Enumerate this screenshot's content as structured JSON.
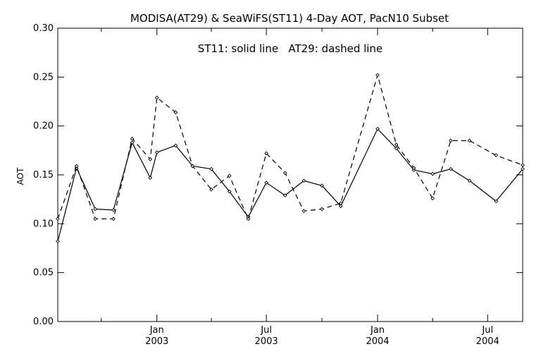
{
  "chart_data": {
    "type": "line",
    "title": "MODISA(AT29) & SeaWiFS(ST11) 4-Day AOT, PacN10 Subset",
    "annotation": "ST11: solid line   AT29: dashed line",
    "ylabel": "AOT",
    "xlabel": "",
    "ylim": [
      0.0,
      0.3
    ],
    "xlim": [
      "2002-07-21",
      "2004-08-28"
    ],
    "yticks": [
      "0.00",
      "0.05",
      "0.10",
      "0.15",
      "0.20",
      "0.25",
      "0.30"
    ],
    "xticks": [
      {
        "label": "Jan",
        "sublabel": "2003"
      },
      {
        "label": "Jul",
        "sublabel": "2003"
      },
      {
        "label": "Jan",
        "sublabel": "2004"
      },
      {
        "label": "Jul",
        "sublabel": "2004"
      }
    ],
    "series": [
      {
        "name": "ST11",
        "style": "solid",
        "color": "#000000",
        "points": [
          [
            "2002-07-21",
            0.082
          ],
          [
            "2002-08-21",
            0.157
          ],
          [
            "2002-09-21",
            0.115
          ],
          [
            "2002-10-21",
            0.114
          ],
          [
            "2002-11-21",
            0.183
          ],
          [
            "2002-12-21",
            0.147
          ],
          [
            "2003-01-01",
            0.173
          ],
          [
            "2003-02-01",
            0.18
          ],
          [
            "2003-03-01",
            0.159
          ],
          [
            "2003-04-01",
            0.156
          ],
          [
            "2003-05-01",
            0.133
          ],
          [
            "2003-06-01",
            0.107
          ],
          [
            "2003-07-01",
            0.142
          ],
          [
            "2003-08-01",
            0.129
          ],
          [
            "2003-09-01",
            0.144
          ],
          [
            "2003-10-01",
            0.139
          ],
          [
            "2003-11-01",
            0.118
          ],
          [
            "2004-01-01",
            0.197
          ],
          [
            "2004-02-01",
            0.177
          ],
          [
            "2004-03-01",
            0.155
          ],
          [
            "2004-04-01",
            0.151
          ],
          [
            "2004-05-01",
            0.156
          ],
          [
            "2004-06-01",
            0.144
          ],
          [
            "2004-07-15",
            0.123
          ],
          [
            "2004-08-28",
            0.156
          ]
        ]
      },
      {
        "name": "AT29",
        "style": "dashed",
        "color": "#000000",
        "points": [
          [
            "2002-07-21",
            0.105
          ],
          [
            "2002-08-21",
            0.159
          ],
          [
            "2002-09-21",
            0.105
          ],
          [
            "2002-10-21",
            0.105
          ],
          [
            "2002-11-21",
            0.187
          ],
          [
            "2002-12-21",
            0.166
          ],
          [
            "2003-01-01",
            0.229
          ],
          [
            "2003-02-01",
            0.214
          ],
          [
            "2003-03-01",
            0.159
          ],
          [
            "2003-04-01",
            0.135
          ],
          [
            "2003-05-01",
            0.149
          ],
          [
            "2003-06-01",
            0.105
          ],
          [
            "2003-07-01",
            0.172
          ],
          [
            "2003-08-01",
            0.152
          ],
          [
            "2003-09-01",
            0.113
          ],
          [
            "2003-10-01",
            0.115
          ],
          [
            "2003-11-01",
            0.121
          ],
          [
            "2004-01-01",
            0.252
          ],
          [
            "2004-02-01",
            0.181
          ],
          [
            "2004-03-01",
            0.157
          ],
          [
            "2004-04-01",
            0.126
          ],
          [
            "2004-05-01",
            0.185
          ],
          [
            "2004-06-01",
            0.185
          ],
          [
            "2004-07-15",
            0.17
          ],
          [
            "2004-08-28",
            0.16
          ]
        ]
      }
    ],
    "grid": false,
    "legend": "none"
  }
}
